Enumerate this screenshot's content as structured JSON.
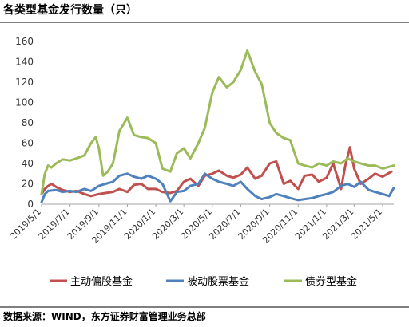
{
  "header": {
    "title": "各类型基金发行数量（只）"
  },
  "footer": {
    "source": "数据来源：WIND，东方证券财富管理业务总部"
  },
  "chart_data": {
    "type": "line",
    "title": "各类型基金发行数量（只）",
    "xlabel": "",
    "ylabel": "",
    "ylim": [
      0,
      160
    ],
    "yticks": [
      0,
      20,
      40,
      60,
      80,
      100,
      120,
      140,
      160
    ],
    "grid": false,
    "legend_position": "bottom",
    "x_tick_labels": [
      "2019/5/1",
      "2019/7/1",
      "2019/9/1",
      "2019/11/1",
      "2020/1/1",
      "2020/3/1",
      "2020/5/1",
      "2020/7/1",
      "2020/9/1",
      "2020/11/1",
      "2021/1/1",
      "2021/3/1",
      "2021/5/1"
    ],
    "series": [
      {
        "name": "主动偏股基金",
        "color": "#c0504d",
        "points": [
          [
            "2019/5/1",
            10
          ],
          [
            "2019/5/8",
            15
          ],
          [
            "2019/5/15",
            18
          ],
          [
            "2019/5/22",
            20
          ],
          [
            "2019/6/1",
            17
          ],
          [
            "2019/6/15",
            14
          ],
          [
            "2019/7/1",
            12
          ],
          [
            "2019/7/15",
            13
          ],
          [
            "2019/8/1",
            10
          ],
          [
            "2019/8/15",
            8
          ],
          [
            "2019/9/1",
            10
          ],
          [
            "2019/9/15",
            11
          ],
          [
            "2019/10/1",
            12
          ],
          [
            "2019/10/15",
            15
          ],
          [
            "2019/11/1",
            12
          ],
          [
            "2019/11/15",
            19
          ],
          [
            "2019/12/1",
            20
          ],
          [
            "2019/12/15",
            15
          ],
          [
            "2020/1/1",
            15
          ],
          [
            "2020/1/15",
            12
          ],
          [
            "2020/2/1",
            11
          ],
          [
            "2020/2/15",
            13
          ],
          [
            "2020/3/1",
            22
          ],
          [
            "2020/3/15",
            25
          ],
          [
            "2020/4/1",
            18
          ],
          [
            "2020/4/15",
            28
          ],
          [
            "2020/5/1",
            30
          ],
          [
            "2020/5/15",
            33
          ],
          [
            "2020/6/1",
            28
          ],
          [
            "2020/6/15",
            26
          ],
          [
            "2020/7/1",
            29
          ],
          [
            "2020/7/15",
            36
          ],
          [
            "2020/8/1",
            25
          ],
          [
            "2020/8/15",
            28
          ],
          [
            "2020/9/1",
            40
          ],
          [
            "2020/9/15",
            42
          ],
          [
            "2020/10/1",
            20
          ],
          [
            "2020/10/15",
            23
          ],
          [
            "2020/11/1",
            15
          ],
          [
            "2020/11/15",
            28
          ],
          [
            "2020/12/1",
            29
          ],
          [
            "2020/12/15",
            22
          ],
          [
            "2021/1/1",
            26
          ],
          [
            "2021/1/15",
            40
          ],
          [
            "2021/2/1",
            15
          ],
          [
            "2021/2/10",
            38
          ],
          [
            "2021/2/20",
            56
          ],
          [
            "2021/3/1",
            35
          ],
          [
            "2021/3/15",
            20
          ],
          [
            "2021/4/1",
            25
          ],
          [
            "2021/4/15",
            30
          ],
          [
            "2021/5/1",
            27
          ],
          [
            "2021/5/20",
            32
          ]
        ]
      },
      {
        "name": "被动股票基金",
        "color": "#4f81bd",
        "points": [
          [
            "2019/5/1",
            2
          ],
          [
            "2019/5/8",
            10
          ],
          [
            "2019/5/15",
            13
          ],
          [
            "2019/6/1",
            14
          ],
          [
            "2019/6/15",
            12
          ],
          [
            "2019/7/1",
            13
          ],
          [
            "2019/7/15",
            12
          ],
          [
            "2019/8/1",
            15
          ],
          [
            "2019/8/15",
            13
          ],
          [
            "2019/9/1",
            18
          ],
          [
            "2019/9/15",
            20
          ],
          [
            "2019/10/1",
            22
          ],
          [
            "2019/10/15",
            28
          ],
          [
            "2019/11/1",
            30
          ],
          [
            "2019/11/15",
            27
          ],
          [
            "2019/12/1",
            25
          ],
          [
            "2019/12/15",
            28
          ],
          [
            "2020/1/1",
            25
          ],
          [
            "2020/1/15",
            20
          ],
          [
            "2020/2/1",
            3
          ],
          [
            "2020/2/15",
            12
          ],
          [
            "2020/3/1",
            13
          ],
          [
            "2020/3/15",
            18
          ],
          [
            "2020/4/1",
            20
          ],
          [
            "2020/4/15",
            30
          ],
          [
            "2020/5/1",
            25
          ],
          [
            "2020/5/15",
            22
          ],
          [
            "2020/6/1",
            20
          ],
          [
            "2020/6/15",
            18
          ],
          [
            "2020/7/1",
            22
          ],
          [
            "2020/7/15",
            15
          ],
          [
            "2020/8/1",
            8
          ],
          [
            "2020/8/15",
            5
          ],
          [
            "2020/9/1",
            7
          ],
          [
            "2020/9/15",
            10
          ],
          [
            "2020/10/1",
            8
          ],
          [
            "2020/10/15",
            6
          ],
          [
            "2020/11/1",
            4
          ],
          [
            "2020/11/15",
            5
          ],
          [
            "2020/12/1",
            6
          ],
          [
            "2020/12/15",
            8
          ],
          [
            "2021/1/1",
            10
          ],
          [
            "2021/1/15",
            12
          ],
          [
            "2021/2/1",
            18
          ],
          [
            "2021/2/15",
            20
          ],
          [
            "2021/3/1",
            17
          ],
          [
            "2021/3/15",
            22
          ],
          [
            "2021/4/1",
            14
          ],
          [
            "2021/4/15",
            12
          ],
          [
            "2021/5/1",
            10
          ],
          [
            "2021/5/15",
            8
          ],
          [
            "2021/5/25",
            16
          ]
        ]
      },
      {
        "name": "债券型基金",
        "color": "#9bbb59",
        "points": [
          [
            "2019/5/1",
            10
          ],
          [
            "2019/5/8",
            30
          ],
          [
            "2019/5/15",
            38
          ],
          [
            "2019/5/22",
            36
          ],
          [
            "2019/6/1",
            40
          ],
          [
            "2019/6/15",
            44
          ],
          [
            "2019/7/1",
            43
          ],
          [
            "2019/7/15",
            45
          ],
          [
            "2019/8/1",
            48
          ],
          [
            "2019/8/15",
            60
          ],
          [
            "2019/8/25",
            66
          ],
          [
            "2019/9/1",
            55
          ],
          [
            "2019/9/10",
            28
          ],
          [
            "2019/9/20",
            32
          ],
          [
            "2019/10/1",
            40
          ],
          [
            "2019/10/15",
            72
          ],
          [
            "2019/11/1",
            85
          ],
          [
            "2019/11/15",
            68
          ],
          [
            "2019/12/1",
            66
          ],
          [
            "2019/12/15",
            65
          ],
          [
            "2020/1/1",
            60
          ],
          [
            "2020/1/15",
            35
          ],
          [
            "2020/2/1",
            32
          ],
          [
            "2020/2/15",
            50
          ],
          [
            "2020/3/1",
            55
          ],
          [
            "2020/3/15",
            45
          ],
          [
            "2020/4/1",
            60
          ],
          [
            "2020/4/15",
            75
          ],
          [
            "2020/5/1",
            110
          ],
          [
            "2020/5/15",
            125
          ],
          [
            "2020/6/1",
            115
          ],
          [
            "2020/6/15",
            120
          ],
          [
            "2020/7/1",
            132
          ],
          [
            "2020/7/15",
            151
          ],
          [
            "2020/8/1",
            130
          ],
          [
            "2020/8/15",
            118
          ],
          [
            "2020/9/1",
            80
          ],
          [
            "2020/9/15",
            70
          ],
          [
            "2020/10/1",
            65
          ],
          [
            "2020/10/15",
            63
          ],
          [
            "2020/11/1",
            40
          ],
          [
            "2020/11/15",
            38
          ],
          [
            "2020/12/1",
            36
          ],
          [
            "2020/12/15",
            40
          ],
          [
            "2021/1/1",
            38
          ],
          [
            "2021/1/15",
            42
          ],
          [
            "2021/2/1",
            40
          ],
          [
            "2021/2/15",
            45
          ],
          [
            "2021/3/1",
            42
          ],
          [
            "2021/3/15",
            40
          ],
          [
            "2021/4/1",
            38
          ],
          [
            "2021/4/15",
            38
          ],
          [
            "2021/5/1",
            35
          ],
          [
            "2021/5/25",
            38
          ]
        ]
      }
    ]
  }
}
